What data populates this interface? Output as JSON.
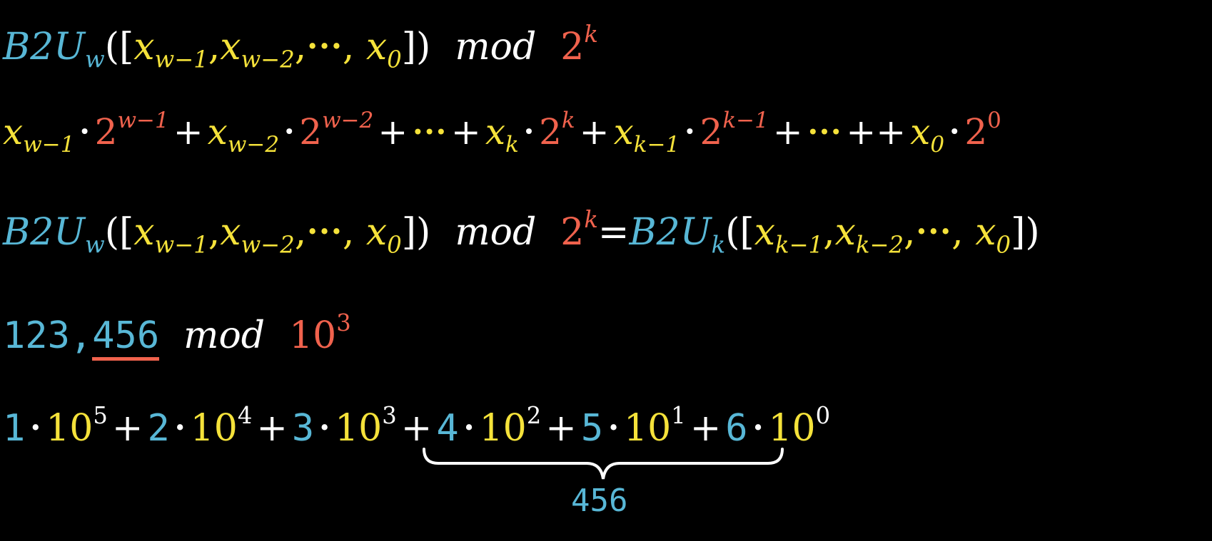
{
  "colors": {
    "function": "#58b7d6",
    "variable": "#f5e23a",
    "power": "#f0624d",
    "text": "#ffffff"
  },
  "line1": {
    "fn": "B2U",
    "fn_sub": "w",
    "open": "([",
    "x1": "x",
    "x1_sub": "w−1",
    "comma1": ",",
    "x2": "x",
    "x2_sub": "w−2",
    "comma2": ",",
    "ellipsis": "•••",
    "comma3": ",",
    "x0": "x",
    "x0_sub": "0",
    "close": "])",
    "mod": "mod",
    "base": "2",
    "exp": "k"
  },
  "line2": {
    "x1": "x",
    "x1_sub": "w−1",
    "dot": "•",
    "p1": "2",
    "p1_exp": "w−1",
    "plus": "+",
    "x2": "x",
    "x2_sub": "w−2",
    "p2": "2",
    "p2_exp": "w−2",
    "ellipsis": "•••",
    "xk": "x",
    "xk_sub": "k",
    "pk": "2",
    "pk_exp": "k",
    "xk1": "x",
    "xk1_sub": "k−1",
    "pk1": "2",
    "pk1_exp": "k−1",
    "plusplus": "++",
    "x0": "x",
    "x0_sub": "0",
    "p0": "2",
    "p0_exp": "0"
  },
  "line3": {
    "fn": "B2U",
    "fn_sub": "w",
    "open": "([",
    "x1": "x",
    "x1_sub": "w−1",
    "comma": ",",
    "x2": "x",
    "x2_sub": "w−2",
    "ellipsis": "•••",
    "x0": "x",
    "x0_sub": "0",
    "close": "])",
    "mod": "mod",
    "base": "2",
    "exp": "k",
    "eq": "=",
    "fn2": "B2U",
    "fn2_sub": "k",
    "y1": "x",
    "y1_sub": "k−1",
    "y2": "x",
    "y2_sub": "k−2",
    "y0": "x",
    "y0_sub": "0"
  },
  "line4": {
    "num_prefix": "123,",
    "num_suffix": "456",
    "mod": "mod",
    "base": "10",
    "exp": "3"
  },
  "line5": {
    "terms": [
      {
        "digit": "1",
        "base": "10",
        "exp": "5"
      },
      {
        "digit": "2",
        "base": "10",
        "exp": "4"
      },
      {
        "digit": "3",
        "base": "10",
        "exp": "3"
      },
      {
        "digit": "4",
        "base": "10",
        "exp": "2"
      },
      {
        "digit": "5",
        "base": "10",
        "exp": "1"
      },
      {
        "digit": "6",
        "base": "10",
        "exp": "0"
      }
    ],
    "dot": "•",
    "plus": "+",
    "brace_label": "456"
  }
}
